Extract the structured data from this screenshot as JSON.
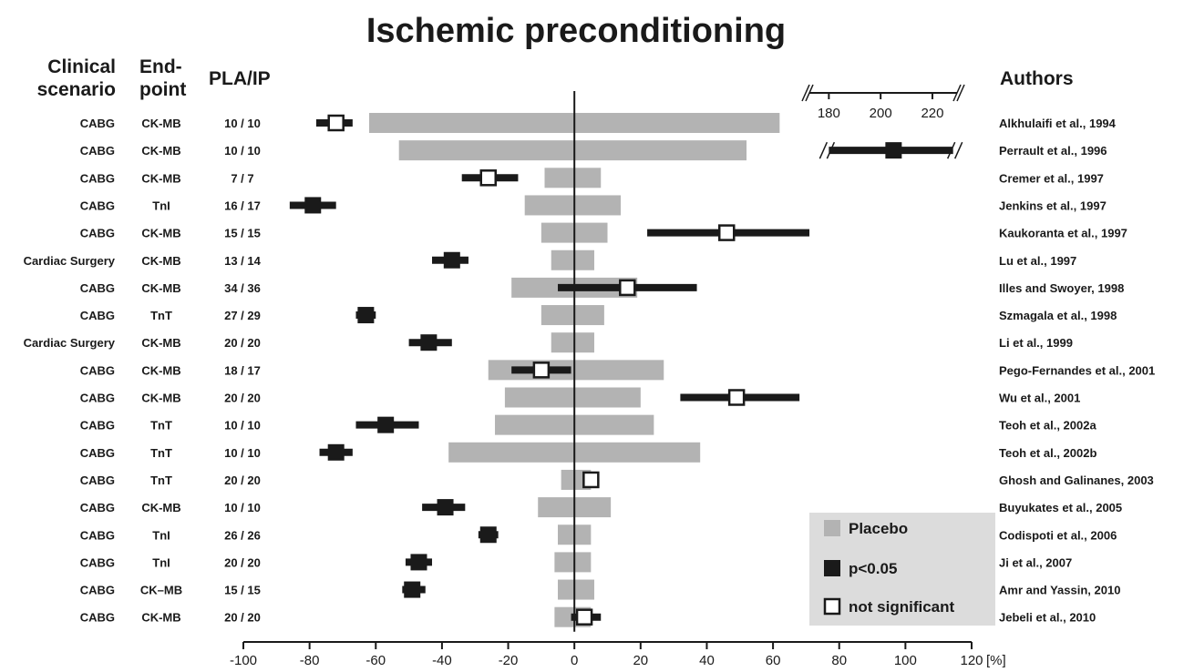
{
  "chart_data": {
    "type": "forest",
    "title": "Ischemic preconditioning",
    "column_headers": {
      "scenario": [
        "Clinical",
        "scenario"
      ],
      "endpoint": [
        "End-",
        "point"
      ],
      "ratio": "PLA/IP",
      "authors": "Authors"
    },
    "x_unit": "[%]",
    "xlim": [
      -100,
      120
    ],
    "x_ticks": [
      -100,
      -80,
      -60,
      -40,
      -20,
      0,
      20,
      40,
      60,
      80,
      100,
      120
    ],
    "inset_axis": {
      "ticks": [
        180,
        200,
        220
      ],
      "range": [
        176,
        226
      ]
    },
    "legend": {
      "position": "bottom-right",
      "placebo": "Placebo",
      "significant": "p<0.05",
      "not_significant": "not significant"
    },
    "colors": {
      "placebo": "#b3b3b3",
      "effect": "#1a1a1a",
      "legend_bg": "#dcdcdc"
    },
    "rows": [
      {
        "scenario": "CABG",
        "endpoint": "CK-MB",
        "ratio": "10 / 10",
        "author": "Alkhulaifi et al., 1994",
        "placebo": [
          -62,
          62
        ],
        "effect": -72,
        "ci": [
          -78,
          -67
        ],
        "significant": false
      },
      {
        "scenario": "CABG",
        "endpoint": "CK-MB",
        "ratio": "10 / 10",
        "author": "Perrault et al., 1996",
        "placebo": [
          -53,
          52
        ],
        "effect": 205,
        "ci": [
          180,
          228
        ],
        "significant": true,
        "inset": true
      },
      {
        "scenario": "CABG",
        "endpoint": "CK-MB",
        "ratio": "7 / 7",
        "author": "Cremer et al., 1997",
        "placebo": [
          -9,
          8
        ],
        "effect": -26,
        "ci": [
          -34,
          -17
        ],
        "significant": false
      },
      {
        "scenario": "CABG",
        "endpoint": "TnI",
        "ratio": "16 / 17",
        "author": "Jenkins et al., 1997",
        "placebo": [
          -15,
          14
        ],
        "effect": -79,
        "ci": [
          -86,
          -72
        ],
        "significant": true
      },
      {
        "scenario": "CABG",
        "endpoint": "CK-MB",
        "ratio": "15 / 15",
        "author": "Kaukoranta et al., 1997",
        "placebo": [
          -10,
          10
        ],
        "effect": 46,
        "ci": [
          22,
          71
        ],
        "significant": false
      },
      {
        "scenario": "Cardiac Surgery",
        "endpoint": "CK-MB",
        "ratio": "13 / 14",
        "author": "Lu et al., 1997",
        "placebo": [
          -7,
          6
        ],
        "effect": -37,
        "ci": [
          -43,
          -32
        ],
        "significant": true
      },
      {
        "scenario": "CABG",
        "endpoint": "CK-MB",
        "ratio": "34 / 36",
        "author": "Illes and Swoyer, 1998",
        "placebo": [
          -19,
          19
        ],
        "effect": 16,
        "ci": [
          -5,
          37
        ],
        "significant": false
      },
      {
        "scenario": "CABG",
        "endpoint": "TnT",
        "ratio": "27 / 29",
        "author": "Szmagala et al., 1998",
        "placebo": [
          -10,
          9
        ],
        "effect": -63,
        "ci": [
          -66,
          -60
        ],
        "significant": true
      },
      {
        "scenario": "Cardiac Surgery",
        "endpoint": "CK-MB",
        "ratio": "20 / 20",
        "author": "Li et al., 1999",
        "placebo": [
          -7,
          6
        ],
        "effect": -44,
        "ci": [
          -50,
          -37
        ],
        "significant": true
      },
      {
        "scenario": "CABG",
        "endpoint": "CK-MB",
        "ratio": "18 / 17",
        "author": "Pego-Fernandes et al., 2001",
        "placebo": [
          -26,
          27
        ],
        "effect": -10,
        "ci": [
          -19,
          -1
        ],
        "significant": false
      },
      {
        "scenario": "CABG",
        "endpoint": "CK-MB",
        "ratio": "20 / 20",
        "author": "Wu et al., 2001",
        "placebo": [
          -21,
          20
        ],
        "effect": 49,
        "ci": [
          32,
          68
        ],
        "significant": false
      },
      {
        "scenario": "CABG",
        "endpoint": "TnT",
        "ratio": "10 / 10",
        "author": "Teoh et al., 2002a",
        "placebo": [
          -24,
          24
        ],
        "effect": -57,
        "ci": [
          -66,
          -47
        ],
        "significant": true
      },
      {
        "scenario": "CABG",
        "endpoint": "TnT",
        "ratio": "10 / 10",
        "author": "Teoh et al., 2002b",
        "placebo": [
          -38,
          38
        ],
        "effect": -72,
        "ci": [
          -77,
          -67
        ],
        "significant": true
      },
      {
        "scenario": "CABG",
        "endpoint": "TnT",
        "ratio": "20 / 20",
        "author": "Ghosh and Galinanes, 2003",
        "placebo": [
          -4,
          5
        ],
        "effect": 5,
        "ci": [
          3,
          7
        ],
        "significant": false
      },
      {
        "scenario": "CABG",
        "endpoint": "CK-MB",
        "ratio": "10 / 10",
        "author": "Buyukates et al., 2005",
        "placebo": [
          -11,
          11
        ],
        "effect": -39,
        "ci": [
          -46,
          -33
        ],
        "significant": true
      },
      {
        "scenario": "CABG",
        "endpoint": "TnI",
        "ratio": "26 / 26",
        "author": "Codispoti et al., 2006",
        "placebo": [
          -5,
          5
        ],
        "effect": -26,
        "ci": [
          -29,
          -23
        ],
        "significant": true
      },
      {
        "scenario": "CABG",
        "endpoint": "TnI",
        "ratio": "20 / 20",
        "author": "Ji et al., 2007",
        "placebo": [
          -6,
          5
        ],
        "effect": -47,
        "ci": [
          -51,
          -43
        ],
        "significant": true
      },
      {
        "scenario": "CABG",
        "endpoint": "CK–MB",
        "ratio": "15 / 15",
        "author": "Amr and Yassin, 2010",
        "placebo": [
          -5,
          6
        ],
        "effect": -49,
        "ci": [
          -52,
          -45
        ],
        "significant": true
      },
      {
        "scenario": "CABG",
        "endpoint": "CK-MB",
        "ratio": "20 / 20",
        "author": "Jebeli et al., 2010",
        "placebo": [
          -6,
          5
        ],
        "effect": 3,
        "ci": [
          -1,
          8
        ],
        "significant": false
      }
    ]
  }
}
